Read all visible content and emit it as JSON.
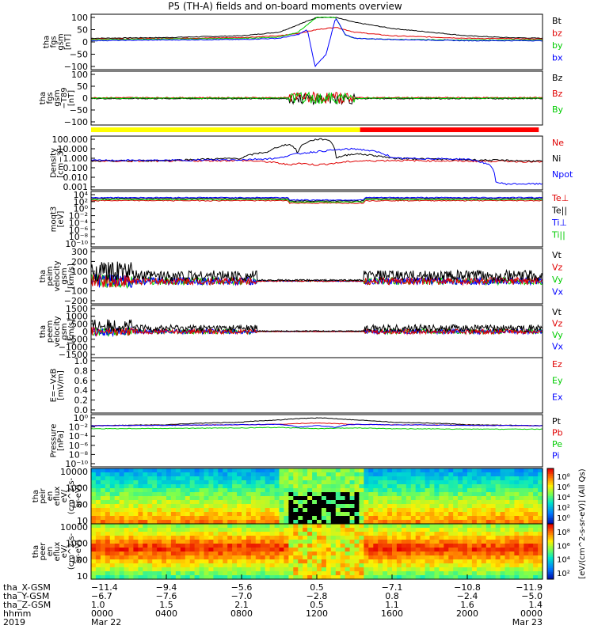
{
  "title": "P5 (TH-A) fields and on-board moments overview",
  "colors": {
    "black": "#000000",
    "red": "#e00000",
    "green": "#00cc00",
    "blue": "#0000ff",
    "yellow": "#ffff00",
    "barRed": "#ff0000"
  },
  "panels": [
    {
      "id": "fgs-gsm",
      "ylabel": [
        "tha",
        "fgs",
        "gsm",
        "[nT]"
      ],
      "yticks": [
        "100",
        "50",
        "0",
        "−50",
        "−100"
      ],
      "legend": [
        {
          "label": "Bt",
          "color": "#000000"
        },
        {
          "label": "bz",
          "color": "#e00000"
        },
        {
          "label": "by",
          "color": "#00cc00"
        },
        {
          "label": "bx",
          "color": "#0000ff"
        }
      ]
    },
    {
      "id": "fgs-gsm-t89",
      "ylabel": [
        "tha",
        "fgs",
        "gsm",
        "−T89",
        "[nT]"
      ],
      "yticks": [
        "100",
        "50",
        "0",
        "−50",
        "−100"
      ],
      "legend": [
        {
          "label": "Bz",
          "color": "#000000"
        },
        {
          "label": "Bz",
          "color": "#e00000"
        },
        {
          "label": "By",
          "color": "#00cc00"
        }
      ]
    },
    {
      "id": "density",
      "ylabel": [
        "Density",
        "[cm−3]"
      ],
      "yticks": [
        "100.000",
        "10.000",
        "1.000",
        "0.100",
        "0.010",
        "0.001"
      ],
      "legend": [
        {
          "label": "Ne",
          "color": "#e00000"
        },
        {
          "label": "Ni",
          "color": "#000000"
        },
        {
          "label": "Npot",
          "color": "#0000ff"
        }
      ]
    },
    {
      "id": "temperature",
      "ylabel": [
        "moqt3",
        "[eV]"
      ],
      "yticks": [
        "10⁴",
        "10²",
        "10⁰",
        "10⁻²",
        "10⁻⁴",
        "10⁻⁶",
        "10⁻⁸",
        "10⁻¹⁰"
      ],
      "legend": [
        {
          "label": "Te⊥",
          "color": "#e00000"
        },
        {
          "label": "Te||",
          "color": "#000000"
        },
        {
          "label": "Ti⊥",
          "color": "#0000ff"
        },
        {
          "label": "Ti||",
          "color": "#00cc00"
        }
      ]
    },
    {
      "id": "peim-velocity",
      "ylabel": [
        "tha",
        "peim",
        "velocity",
        "gsm",
        "[km/s]"
      ],
      "yticks": [
        "300",
        "200",
        "100",
        "0",
        "−100",
        "−200"
      ],
      "legend": [
        {
          "label": "Vt",
          "color": "#000000"
        },
        {
          "label": "Vz",
          "color": "#e00000"
        },
        {
          "label": "Vy",
          "color": "#00cc00"
        },
        {
          "label": "Vx",
          "color": "#0000ff"
        }
      ]
    },
    {
      "id": "peem-velocity",
      "ylabel": [
        "tha",
        "peem",
        "velocity",
        "gsm",
        "[km/s]"
      ],
      "yticks": [
        "1500",
        "1000",
        "500",
        "0",
        "−500",
        "−1000",
        "−1500"
      ],
      "legend": [
        {
          "label": "Vt",
          "color": "#000000"
        },
        {
          "label": "Vz",
          "color": "#e00000"
        },
        {
          "label": "Vy",
          "color": "#00cc00"
        },
        {
          "label": "Vx",
          "color": "#0000ff"
        }
      ]
    },
    {
      "id": "efield",
      "ylabel": [
        "E=−VxB",
        "[mV/m]"
      ],
      "yticks": [
        "1.0",
        "0.8",
        "0.6",
        "0.4",
        "0.2",
        "0.0"
      ],
      "legend": [
        {
          "label": "Ez",
          "color": "#e00000"
        },
        {
          "label": "Ey",
          "color": "#00cc00"
        },
        {
          "label": "Ex",
          "color": "#0000ff"
        }
      ]
    },
    {
      "id": "pressure",
      "ylabel": [
        "Pressure",
        "[nPa]"
      ],
      "yticks": [
        "10⁰",
        "10⁻²",
        "10⁻⁴",
        "10⁻⁶",
        "10⁻⁸",
        "10⁻¹⁰"
      ],
      "legend": [
        {
          "label": "Pt",
          "color": "#000000"
        },
        {
          "label": "Pb",
          "color": "#e00000"
        },
        {
          "label": "Pe",
          "color": "#00cc00"
        },
        {
          "label": "Pi",
          "color": "#0000ff"
        }
      ]
    },
    {
      "id": "peir-eflux",
      "ylabel": [
        "tha",
        "peir",
        "en",
        "eflux",
        "eV/",
        "(cm^2-s-",
        "sr-eV)"
      ],
      "yticks": [
        "10000",
        "1000",
        "100",
        "10"
      ],
      "legend": []
    },
    {
      "id": "peer-eflux",
      "ylabel": [
        "tha",
        "peer",
        "en",
        "eflux",
        "eV/",
        "(cm^2-s-",
        "sr-eV)"
      ],
      "yticks": [
        "10000",
        "1000",
        "100",
        "10"
      ],
      "legend": []
    }
  ],
  "colorbar": {
    "ticks": [
      "10⁸",
      "10⁶",
      "10⁴",
      "10²",
      "10⁰"
    ],
    "ticks2": [
      "10⁸",
      "10⁶",
      "10⁴",
      "10²"
    ],
    "label": "[eV/(cm^2-s-sr-eV)] (All Qs)"
  },
  "xaxis": {
    "rowlabels": [
      "tha_X-GSM",
      "tha_Y-GSM",
      "tha_Z-GSM",
      "hhmm",
      "2019"
    ],
    "columns": [
      [
        "−11.4",
        "−6.7",
        "1.0",
        "0000",
        "Mar 22"
      ],
      [
        "−9.4",
        "−7.6",
        "1.5",
        "0400",
        ""
      ],
      [
        "−5.6",
        "−7.0",
        "2.1",
        "0800",
        ""
      ],
      [
        "0.5",
        "−2.8",
        "0.5",
        "1200",
        ""
      ],
      [
        "−7.1",
        "0.8",
        "1.1",
        "1600",
        ""
      ],
      [
        "−10.8",
        "−2.4",
        "1.6",
        "2000",
        ""
      ],
      [
        "−11.9",
        "−5.0",
        "1.4",
        "0000",
        "Mar 23"
      ]
    ]
  },
  "chart_data": {
    "type": "line",
    "title": "P5 (TH-A) fields and on-board moments overview",
    "x_ticks": [
      "0000",
      "0400",
      "0800",
      "1200",
      "1600",
      "2000",
      "0000"
    ],
    "x_unit": "hhmm",
    "date_start": "Mar 22 2019",
    "date_end": "Mar 23 2019",
    "mode_bar": [
      {
        "from_hour": 0,
        "to_hour": 14.3,
        "color": "#ffff00"
      },
      {
        "from_hour": 14.3,
        "to_hour": 23.8,
        "color": "#ff0000"
      }
    ],
    "series_fgs": [
      {
        "name": "Bt",
        "hours": [
          0,
          4,
          8,
          10,
          11,
          12,
          12.5,
          13,
          14,
          16,
          18,
          20,
          22,
          24
        ],
        "values": [
          15,
          18,
          25,
          40,
          70,
          100,
          100,
          100,
          80,
          55,
          40,
          25,
          18,
          15
        ]
      },
      {
        "name": "bz",
        "hours": [
          0,
          4,
          8,
          10,
          11,
          12,
          13,
          14,
          16,
          20,
          24
        ],
        "values": [
          12,
          14,
          18,
          25,
          35,
          50,
          60,
          40,
          25,
          15,
          12
        ]
      },
      {
        "name": "by",
        "hours": [
          0,
          4,
          8,
          10,
          11,
          11.5,
          12,
          13,
          13.5,
          14,
          16,
          20,
          24
        ],
        "values": [
          10,
          12,
          14,
          20,
          40,
          70,
          100,
          100,
          30,
          15,
          10,
          8,
          8
        ]
      },
      {
        "name": "bx",
        "hours": [
          0,
          4,
          8,
          10,
          11,
          11.5,
          11.9,
          12.5,
          13,
          13.5,
          14,
          16,
          20,
          24
        ],
        "values": [
          5,
          8,
          10,
          15,
          30,
          50,
          -100,
          -50,
          100,
          30,
          15,
          10,
          5,
          5
        ]
      }
    ],
    "series_density": [
      {
        "name": "Ne",
        "hours": [
          0,
          4,
          8,
          9.5,
          10.5,
          11,
          12,
          13,
          14,
          16,
          20,
          22,
          24
        ],
        "values": [
          0.5,
          0.5,
          0.6,
          0.4,
          0.2,
          0.3,
          0.2,
          0.3,
          0.5,
          0.6,
          0.5,
          0.5,
          0.4
        ]
      },
      {
        "name": "Ni",
        "hours": [
          0,
          4,
          8,
          9.5,
          10.5,
          11,
          12,
          12.5,
          13,
          14,
          16,
          20,
          24
        ],
        "values": [
          0.5,
          0.6,
          1,
          5,
          30,
          2,
          100,
          100,
          1,
          3,
          1,
          0.7,
          0.5
        ]
      },
      {
        "name": "Npot",
        "hours": [
          0,
          4,
          8,
          10,
          12,
          14,
          16,
          20,
          21.5,
          22,
          24
        ],
        "values": [
          0.6,
          0.6,
          0.7,
          1,
          5,
          10,
          1,
          0.8,
          0.003,
          0.002,
          0.002
        ]
      }
    ],
    "series_pressure": [
      {
        "name": "Pt",
        "hours": [
          0,
          4,
          8,
          10,
          12,
          14,
          16,
          20,
          24
        ],
        "values": [
          0.05,
          0.08,
          0.3,
          1,
          3,
          1,
          0.3,
          0.08,
          0.05
        ]
      },
      {
        "name": "Pb",
        "hours": [
          0,
          4,
          8,
          10,
          12,
          14,
          16,
          20,
          24
        ],
        "values": [
          0.05,
          0.06,
          0.08,
          0.1,
          0.2,
          0.1,
          0.08,
          0.06,
          0.05
        ]
      },
      {
        "name": "Pe",
        "hours": [
          0,
          4,
          8,
          10,
          12,
          14,
          16,
          20,
          24
        ],
        "values": [
          0.01,
          0.012,
          0.015,
          0.02,
          0.01,
          0.015,
          0.01,
          0.008,
          0.008
        ]
      },
      {
        "name": "Pi",
        "hours": [
          0,
          4,
          8,
          10,
          11,
          12,
          13,
          14,
          16,
          20,
          24
        ],
        "values": [
          0.05,
          0.06,
          0.08,
          0.1,
          0.02,
          0.05,
          0.02,
          0.1,
          0.08,
          0.06,
          0.05
        ]
      }
    ]
  }
}
